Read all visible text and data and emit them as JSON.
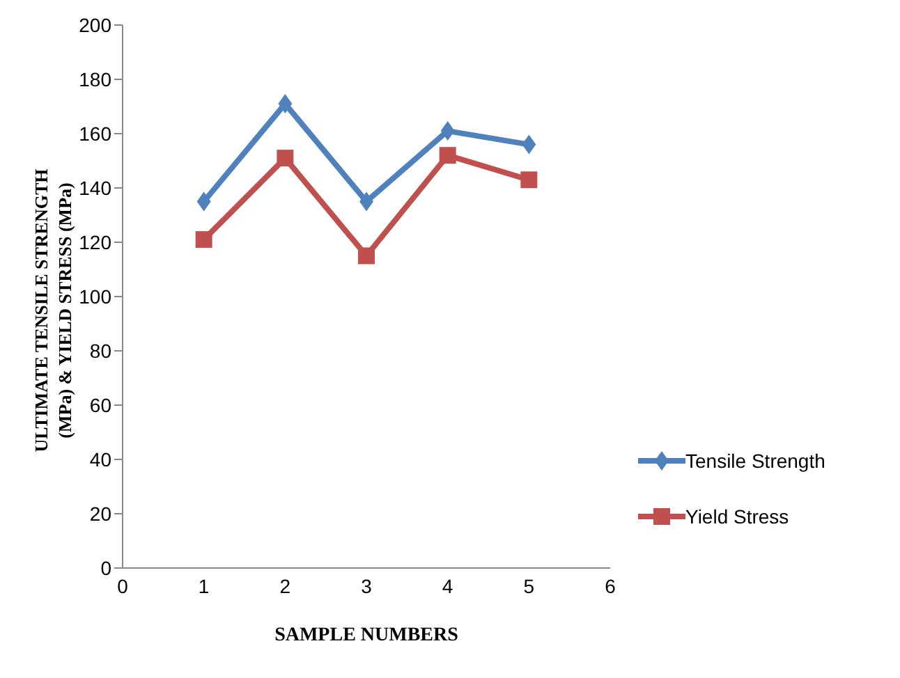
{
  "chart_data": {
    "type": "line",
    "xlabel": "SAMPLE NUMBERS",
    "ylabel": "ULTIMATE TENSILE STRENGTH (MPa) & YIELD STRESS (MPa)",
    "x": [
      1,
      2,
      3,
      4,
      5
    ],
    "series": [
      {
        "name": "Tensile Strength",
        "color": "#4f81bd",
        "marker": "diamond",
        "values": [
          135,
          171,
          135,
          161,
          156
        ]
      },
      {
        "name": "Yield Stress",
        "color": "#c0504d",
        "marker": "square",
        "values": [
          121,
          151,
          115,
          152,
          143
        ]
      }
    ],
    "xlim": [
      0,
      6
    ],
    "xticks": [
      0,
      1,
      2,
      3,
      4,
      5,
      6
    ],
    "ylim": [
      0,
      200
    ],
    "yticks": [
      0,
      20,
      40,
      60,
      80,
      100,
      120,
      140,
      160,
      180,
      200
    ],
    "grid": false,
    "legend": "right"
  }
}
